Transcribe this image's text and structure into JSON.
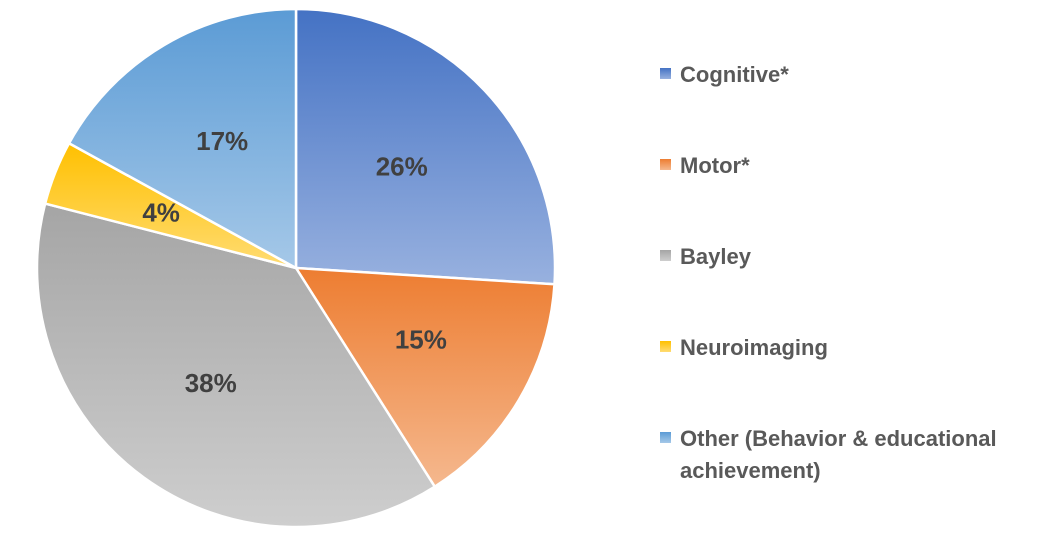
{
  "chart_data": {
    "type": "pie",
    "categories": [
      "Cognitive*",
      "Motor*",
      "Bayley",
      "Neuroimaging",
      "Other (Behavior & educational achievement)"
    ],
    "values": [
      26,
      15,
      38,
      4,
      17
    ],
    "value_labels": [
      "26%",
      "15%",
      "38%",
      "4%",
      "17%"
    ],
    "colors": [
      "#4472c4",
      "#ed7d31",
      "#a5a5a5",
      "#ffc000",
      "#5b9bd5"
    ],
    "legend": "right"
  }
}
